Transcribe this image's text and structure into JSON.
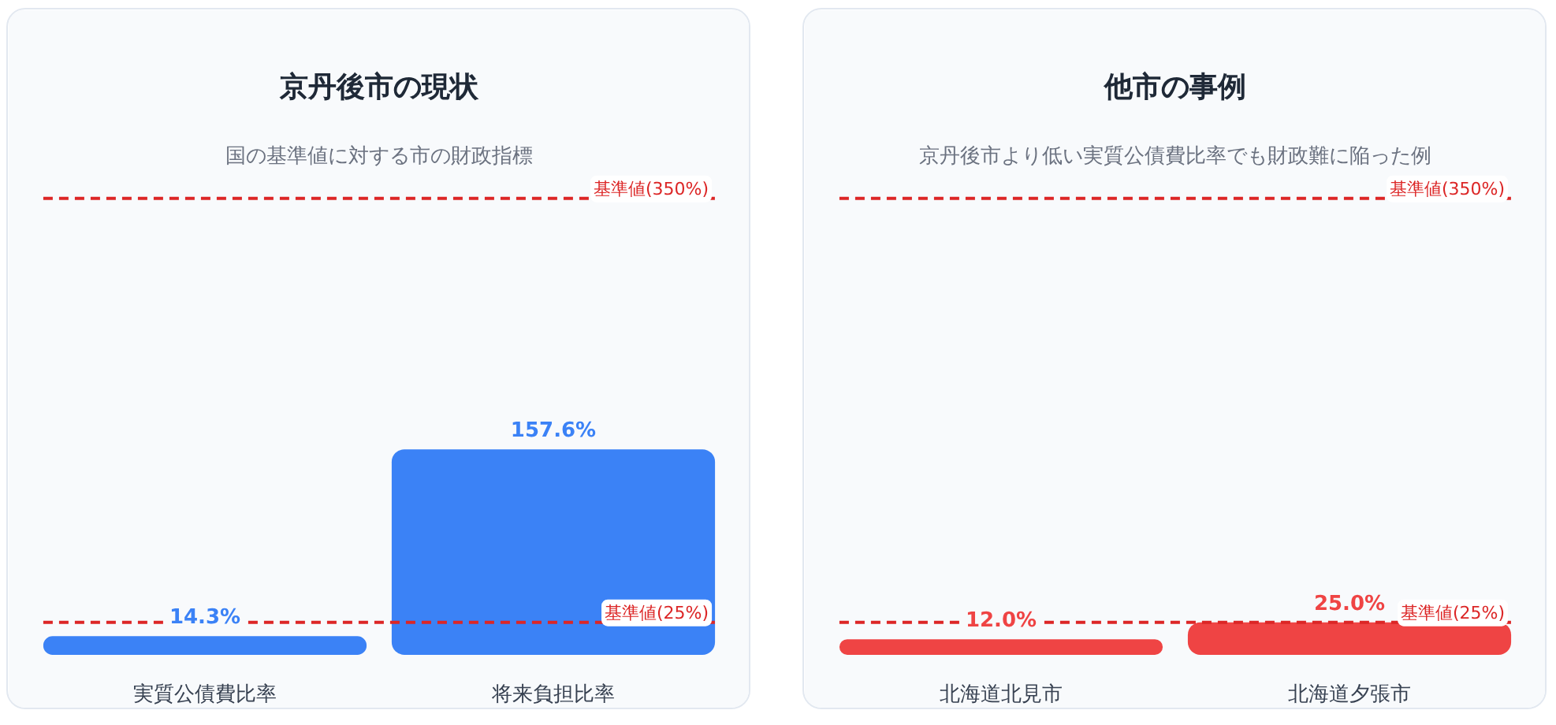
{
  "chart_data": [
    {
      "type": "bar",
      "title": "京丹後市の現状",
      "subtitle": "国の基準値に対する市の財政指標",
      "categories": [
        "実質公債費比率",
        "将来負担比率"
      ],
      "values": [
        14.3,
        157.6
      ],
      "value_labels": [
        "14.3%",
        "157.6%"
      ],
      "color": "#3b82f6",
      "tick_labels": "x",
      "ref_lines": [
        {
          "axis": "y",
          "value": 350,
          "label": "基準値(350%)",
          "color": "#dc2626",
          "line_style": "dashed"
        },
        {
          "axis": "y",
          "value": 25,
          "label": "基準値(25%)",
          "color": "#dc2626",
          "line_style": "dashed"
        }
      ]
    },
    {
      "type": "bar",
      "title": "他市の事例",
      "subtitle": "京丹後市より低い実質公債費比率でも財政難に陥った例",
      "categories": [
        "北海道北見市",
        "北海道夕張市"
      ],
      "values": [
        12.0,
        25.0
      ],
      "value_labels": [
        "12.0%",
        "25.0%"
      ],
      "color": "#ef4444",
      "tick_labels": "x",
      "ref_lines": [
        {
          "axis": "y",
          "value": 350,
          "label": "基準値(350%)",
          "color": "#dc2626",
          "line_style": "dashed"
        },
        {
          "axis": "y",
          "value": 25,
          "label": "基準値(25%)",
          "color": "#dc2626",
          "line_style": "dashed"
        }
      ]
    }
  ]
}
